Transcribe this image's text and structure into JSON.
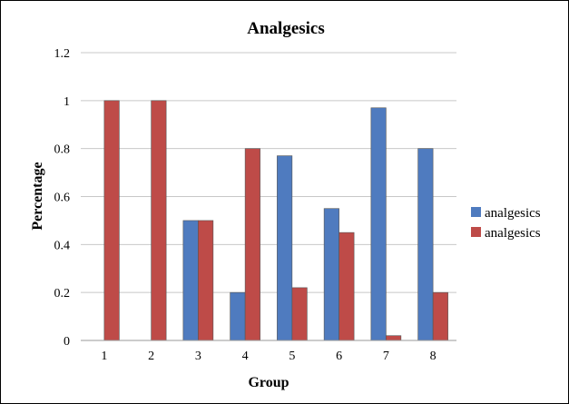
{
  "chart_data": {
    "type": "bar",
    "title": "Analgesics",
    "xlabel": "Group",
    "ylabel": "Percentage",
    "categories": [
      "1",
      "2",
      "3",
      "4",
      "5",
      "6",
      "7",
      "8"
    ],
    "ylim": [
      0,
      1.2
    ],
    "yticks": [
      "0",
      "0.2",
      "0.4",
      "0.6",
      "0.8",
      "1",
      "1.2"
    ],
    "grid": true,
    "legend_position": "right",
    "series": [
      {
        "name": "analgesics",
        "color": "#4F7BBF",
        "values": [
          0,
          0,
          0.5,
          0.2,
          0.77,
          0.55,
          0.97,
          0.8
        ]
      },
      {
        "name": "analgesics",
        "color": "#BE4B48",
        "values": [
          1,
          1,
          0.5,
          0.8,
          0.22,
          0.45,
          0.02,
          0.2
        ]
      }
    ]
  }
}
